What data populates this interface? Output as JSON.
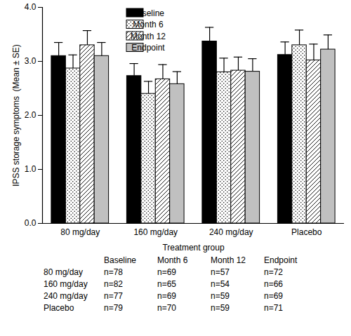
{
  "chart_data": {
    "type": "bar",
    "x_label": "Treatment group",
    "y_label": "IPSS storage symptoms  (Mean ± SE)",
    "categories": [
      "80 mg/day",
      "160 mg/day",
      "240 mg/day",
      "Placebo"
    ],
    "series": [
      {
        "name": "Baseline",
        "color": "#000000",
        "values": [
          3.1,
          2.73,
          3.37,
          3.12
        ],
        "errors": [
          0.25,
          0.23,
          0.26,
          0.24
        ]
      },
      {
        "name": "Month 6",
        "color": "#ffffff",
        "values": [
          2.87,
          2.4,
          2.8,
          3.3
        ],
        "errors": [
          0.25,
          0.23,
          0.26,
          0.28
        ]
      },
      {
        "name": "Month 12",
        "color": "#ffffff",
        "values": [
          3.3,
          2.67,
          2.83,
          3.02
        ],
        "errors": [
          0.27,
          0.27,
          0.25,
          0.3
        ]
      },
      {
        "name": "Endpoint",
        "color": "#c0c0c0",
        "values": [
          3.1,
          2.58,
          2.81,
          3.22
        ],
        "errors": [
          0.25,
          0.23,
          0.24,
          0.27
        ]
      }
    ],
    "ylim": [
      0,
      4
    ],
    "yticks": [
      0,
      1,
      2,
      3,
      4
    ],
    "grid": false,
    "legend": "top"
  },
  "table": {
    "columns": [
      "Baseline",
      "Month 6",
      "Month 12",
      "Endpoint"
    ],
    "rows": [
      {
        "label": "80 mg/day",
        "cells": [
          "n=78",
          "n=69",
          "n=57",
          "n=72"
        ]
      },
      {
        "label": "160 mg/day",
        "cells": [
          "n=82",
          "n=65",
          "n=54",
          "n=66"
        ]
      },
      {
        "label": "240 mg/day",
        "cells": [
          "n=77",
          "n=69",
          "n=59",
          "n=69"
        ]
      },
      {
        "label": "Placebo",
        "cells": [
          "n=79",
          "n=70",
          "n=59",
          "n=71"
        ]
      }
    ]
  }
}
